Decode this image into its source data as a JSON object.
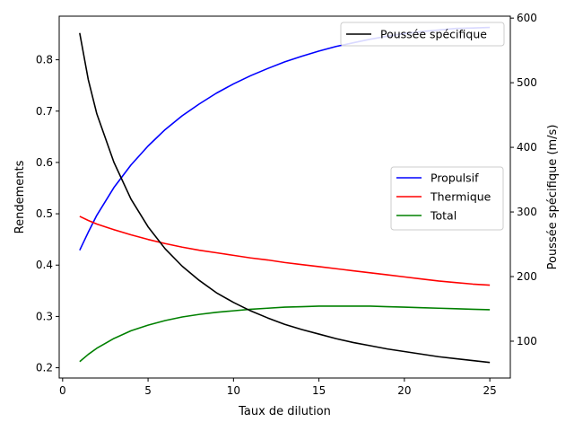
{
  "chart_data": {
    "type": "line",
    "xlabel": "Taux de dilution",
    "ylabel_left": "Rendements",
    "ylabel_right": "Poussée spécifique (m/s)",
    "xlim": [
      -0.2,
      26.2
    ],
    "ylim_left": [
      0.18,
      0.885
    ],
    "ylim_right": [
      43,
      603
    ],
    "x_ticks": [
      0,
      5,
      10,
      15,
      20,
      25
    ],
    "y_left_ticks": [
      0.2,
      0.3,
      0.4,
      0.5,
      0.6,
      0.7,
      0.8
    ],
    "y_right_ticks": [
      100,
      200,
      300,
      400,
      500,
      600
    ],
    "grid": false,
    "left_legend_placement": "center-right",
    "right_legend_placement": "upper-right",
    "x": [
      1,
      1.5,
      2,
      3,
      4,
      5,
      6,
      7,
      8,
      9,
      10,
      11,
      12,
      13,
      14,
      15,
      16,
      17,
      18,
      19,
      20,
      21,
      22,
      23,
      24,
      25
    ],
    "series_left": [
      {
        "name": "Propulsif",
        "color": "#0000ff",
        "values": [
          0.429,
          0.464,
          0.497,
          0.551,
          0.595,
          0.632,
          0.664,
          0.691,
          0.714,
          0.735,
          0.753,
          0.769,
          0.783,
          0.796,
          0.807,
          0.817,
          0.826,
          0.833,
          0.84,
          0.846,
          0.851,
          0.855,
          0.858,
          0.861,
          0.862,
          0.863
        ]
      },
      {
        "name": "Thermique",
        "color": "#ff0000",
        "values": [
          0.495,
          0.487,
          0.48,
          0.469,
          0.459,
          0.45,
          0.442,
          0.435,
          0.429,
          0.424,
          0.419,
          0.414,
          0.41,
          0.405,
          0.401,
          0.397,
          0.393,
          0.389,
          0.385,
          0.381,
          0.377,
          0.373,
          0.369,
          0.366,
          0.363,
          0.361
        ]
      },
      {
        "name": "Total",
        "color": "#008000",
        "values": [
          0.212,
          0.226,
          0.238,
          0.257,
          0.272,
          0.283,
          0.292,
          0.299,
          0.304,
          0.308,
          0.311,
          0.314,
          0.316,
          0.318,
          0.319,
          0.32,
          0.32,
          0.32,
          0.32,
          0.319,
          0.318,
          0.317,
          0.316,
          0.315,
          0.314,
          0.313
        ]
      }
    ],
    "series_right": [
      {
        "name": "Poussée spécifique",
        "color": "#000000",
        "values": [
          577,
          505,
          452,
          377,
          320,
          277,
          243,
          216,
          194,
          175,
          160,
          147,
          136,
          126,
          118,
          111,
          104,
          98,
          93,
          88,
          84,
          80,
          76,
          73,
          70,
          67
        ]
      }
    ]
  }
}
